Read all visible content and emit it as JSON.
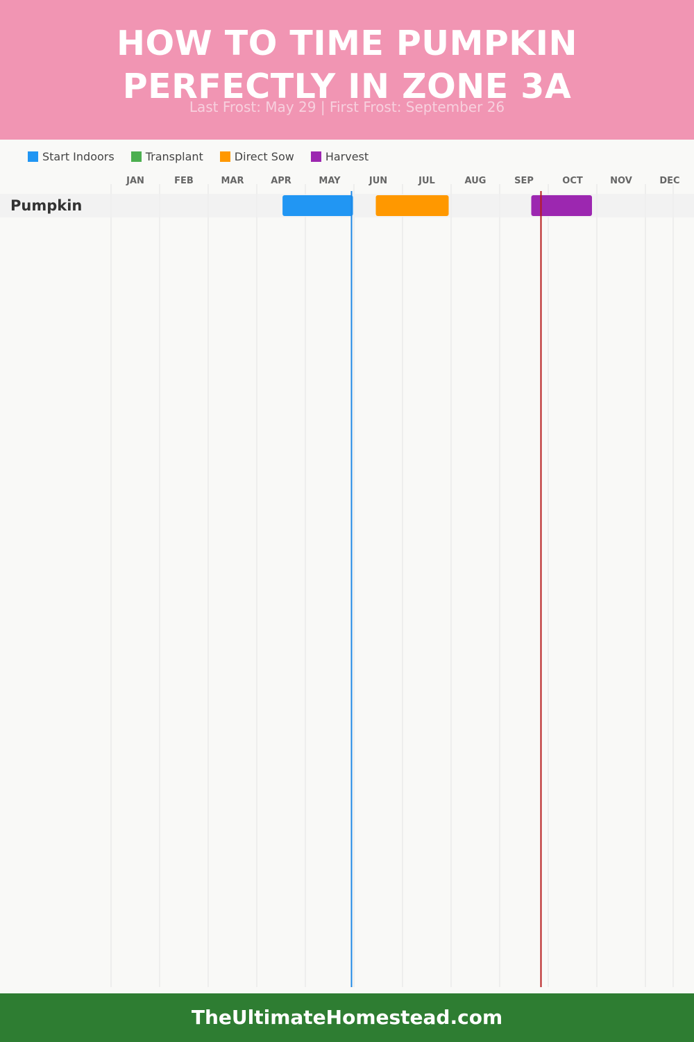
{
  "header": {
    "title_line1": "HOW TO TIME PUMPKIN",
    "title_line2": "PERFECTLY IN ZONE 3A",
    "subtitle": "Last Frost: May 29 | First Frost: September 26"
  },
  "legend": [
    {
      "label": "Start Indoors",
      "color": "#2196f3"
    },
    {
      "label": "Transplant",
      "color": "#4caf50"
    },
    {
      "label": "Direct Sow",
      "color": "#ff9800"
    },
    {
      "label": "Harvest",
      "color": "#9c27b0"
    }
  ],
  "chart_data": {
    "type": "gantt",
    "x_axis": {
      "ticks": [
        "JAN",
        "FEB",
        "MAR",
        "APR",
        "MAY",
        "JUN",
        "JUL",
        "AUG",
        "SEP",
        "OCT",
        "NOV",
        "DEC"
      ],
      "range_months": [
        1,
        13
      ]
    },
    "rows": [
      {
        "crop": "Pumpkin",
        "tasks": [
          {
            "task": "Start Indoors",
            "start": "Apr 17",
            "end": "May 31",
            "start_month": 4.53,
            "end_month": 5.98,
            "color": "#2196f3"
          },
          {
            "task": "Direct Sow",
            "start": "Jun 14",
            "end": "Jul 29",
            "start_month": 6.45,
            "end_month": 7.95,
            "color": "#ff9800"
          },
          {
            "task": "Harvest",
            "start": "Sep 20",
            "end": "Oct 28",
            "start_month": 9.65,
            "end_month": 10.9,
            "color": "#9c27b0"
          }
        ]
      }
    ],
    "markers": [
      {
        "label": "Last Frost",
        "date": "May 29",
        "month": 5.95,
        "color": "#1e88e5"
      },
      {
        "label": "First Frost",
        "date": "September 26",
        "month": 9.85,
        "color": "#b71c1c"
      }
    ],
    "grid": true
  },
  "footer": {
    "text": "TheUltimateHomestead.com"
  }
}
